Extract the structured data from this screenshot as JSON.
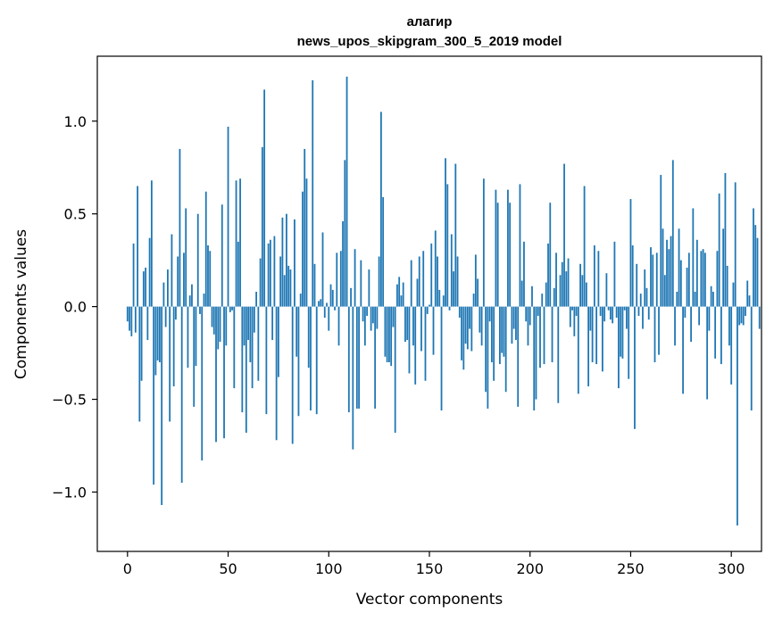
{
  "chart_data": {
    "type": "bar",
    "title": "алагир",
    "subtitle": "news_upos_skipgram_300_5_2019 model",
    "xlabel": "Vector components",
    "ylabel": "Components values",
    "xlim": [
      -15,
      315
    ],
    "ylim": [
      -1.32,
      1.35
    ],
    "xticks": [
      0,
      50,
      100,
      150,
      200,
      250,
      300
    ],
    "yticks": [
      -1.0,
      -0.5,
      0.0,
      0.5,
      1.0
    ],
    "ytick_labels": [
      "−1.0",
      "−0.5",
      "0.0",
      "0.5",
      "1.0"
    ],
    "grid": false,
    "bar_color": "#1f77b4",
    "values": [
      -0.08,
      -0.13,
      -0.16,
      0.34,
      -0.14,
      0.65,
      -0.62,
      -0.4,
      0.19,
      0.21,
      -0.18,
      0.37,
      0.68,
      -0.96,
      -0.37,
      -0.29,
      -0.3,
      -1.07,
      0.13,
      -0.11,
      0.2,
      -0.62,
      0.39,
      -0.43,
      -0.07,
      0.27,
      0.85,
      -0.95,
      0.29,
      0.53,
      -0.33,
      0.06,
      0.12,
      -0.54,
      -0.32,
      0.5,
      -0.04,
      -0.83,
      0.07,
      0.62,
      0.33,
      0.3,
      -0.11,
      -0.15,
      -0.73,
      -0.23,
      -0.19,
      0.55,
      -0.71,
      -0.21,
      0.97,
      -0.03,
      -0.02,
      -0.44,
      0.68,
      0.35,
      0.69,
      -0.57,
      -0.21,
      -0.68,
      -0.18,
      -0.3,
      -0.44,
      -0.14,
      0.08,
      -0.4,
      0.26,
      0.86,
      1.17,
      -0.58,
      0.34,
      0.36,
      -0.18,
      0.38,
      -0.72,
      -0.38,
      0.27,
      0.48,
      0.17,
      0.5,
      0.22,
      0.2,
      -0.74,
      0.47,
      -0.27,
      -0.59,
      0.07,
      0.62,
      0.85,
      0.69,
      -0.33,
      -0.56,
      1.22,
      0.23,
      -0.58,
      0.03,
      0.04,
      0.4,
      -0.06,
      0.02,
      -0.13,
      0.12,
      0.09,
      -0.02,
      0.29,
      -0.21,
      0.3,
      0.46,
      0.79,
      1.24,
      -0.57,
      0.1,
      -0.77,
      0.31,
      -0.55,
      -0.55,
      0.25,
      -0.08,
      -0.21,
      -0.05,
      0.2,
      -0.13,
      -0.09,
      -0.55,
      -0.12,
      0.27,
      1.05,
      0.59,
      -0.27,
      -0.3,
      -0.3,
      -0.32,
      -0.11,
      -0.68,
      0.12,
      0.16,
      0.06,
      0.13,
      -0.19,
      -0.18,
      -0.36,
      0.25,
      -0.21,
      -0.42,
      0.15,
      0.27,
      -0.24,
      0.3,
      -0.4,
      -0.04,
      0.01,
      0.34,
      -0.26,
      0.41,
      0.27,
      0.09,
      -0.56,
      0.06,
      0.8,
      0.66,
      -0.02,
      0.39,
      0.19,
      0.77,
      0.27,
      -0.06,
      -0.29,
      -0.34,
      -0.2,
      -0.23,
      -0.12,
      -0.24,
      0.07,
      0.28,
      0.15,
      -0.14,
      -0.21,
      0.69,
      -0.46,
      -0.55,
      -0.08,
      -0.3,
      -0.4,
      0.63,
      0.56,
      -0.31,
      -0.25,
      -0.27,
      -0.46,
      0.63,
      0.56,
      -0.2,
      -0.12,
      -0.18,
      -0.54,
      0.66,
      0.14,
      0.35,
      -0.08,
      -0.21,
      -0.1,
      0.11,
      -0.56,
      -0.5,
      -0.05,
      -0.33,
      0.07,
      -0.31,
      0.13,
      0.34,
      0.56,
      -0.3,
      0.1,
      0.29,
      -0.52,
      0.17,
      0.24,
      0.77,
      0.19,
      0.26,
      -0.11,
      -0.02,
      -0.16,
      -0.05,
      -0.47,
      0.23,
      0.17,
      0.65,
      0.13,
      -0.43,
      -0.13,
      -0.3,
      0.33,
      -0.31,
      0.3,
      -0.05,
      -0.35,
      -0.08,
      0.18,
      -0.02,
      -0.07,
      -0.09,
      0.35,
      -0.06,
      -0.44,
      -0.27,
      -0.28,
      -0.02,
      -0.12,
      -0.39,
      0.58,
      0.33,
      -0.66,
      0.23,
      -0.05,
      0.07,
      -0.12,
      0.2,
      0.1,
      -0.07,
      0.32,
      0.28,
      -0.3,
      0.29,
      -0.26,
      0.71,
      0.42,
      0.17,
      0.36,
      0.31,
      0.38,
      0.79,
      -0.21,
      0.08,
      0.42,
      0.25,
      -0.47,
      -0.06,
      0.21,
      0.29,
      -0.19,
      0.53,
      0.08,
      0.36,
      -0.1,
      0.3,
      0.31,
      0.29,
      -0.5,
      -0.13,
      0.11,
      0.08,
      -0.28,
      0.3,
      0.61,
      -0.31,
      0.42,
      0.72,
      0.22,
      -0.21,
      -0.42,
      0.13,
      0.67,
      -1.18,
      -0.1,
      -0.09,
      -0.1,
      -0.05,
      0.14,
      0.06,
      -0.56,
      0.53,
      0.44,
      0.37,
      -0.12
    ]
  }
}
